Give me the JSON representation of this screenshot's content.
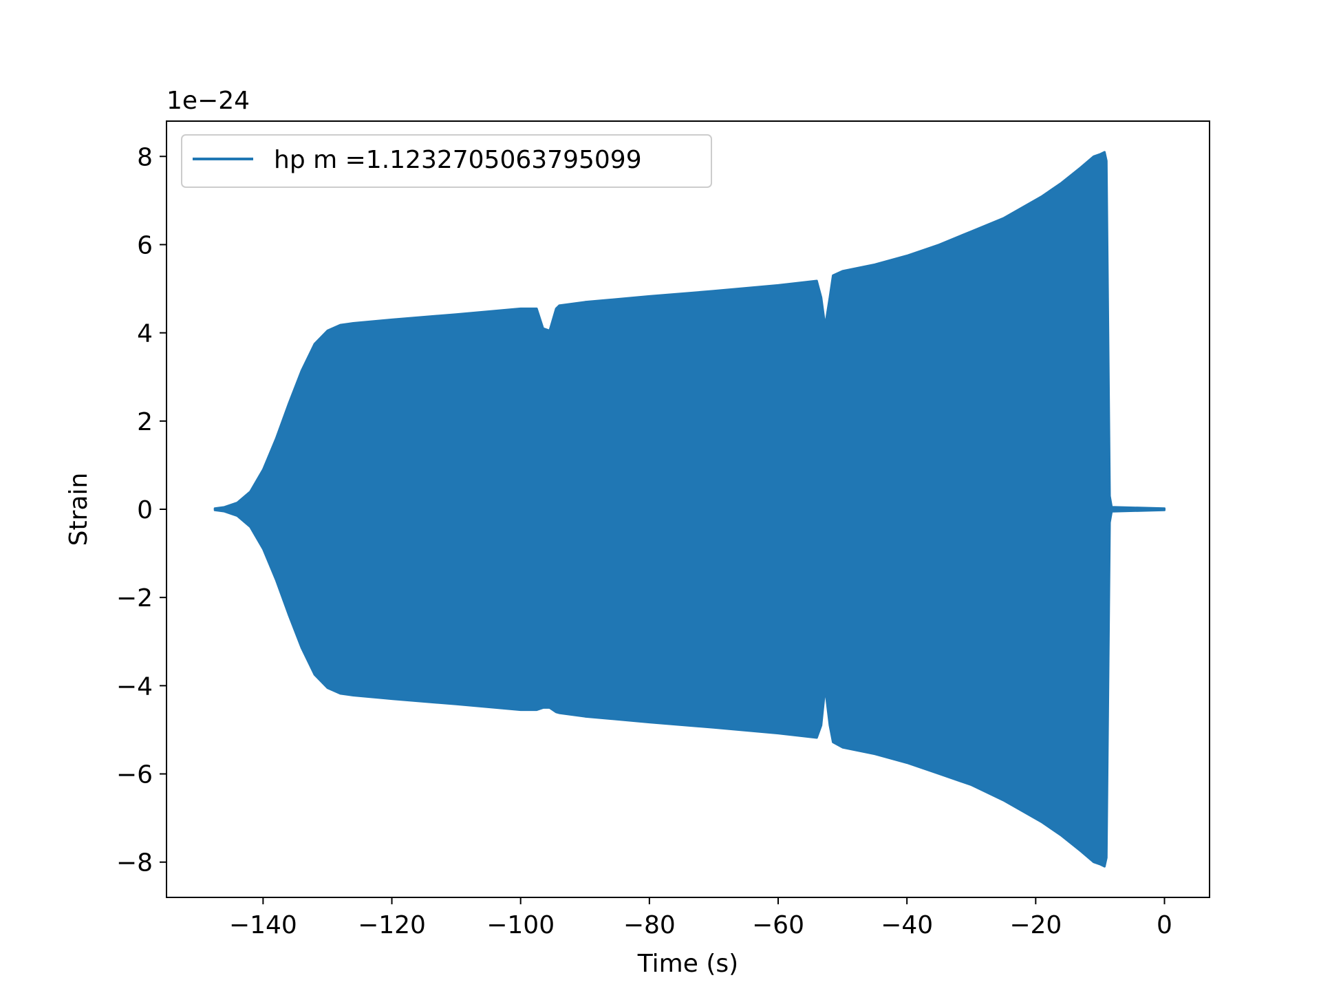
{
  "chart_data": {
    "type": "line",
    "title": "",
    "xlabel": "Time (s)",
    "ylabel": "Strain",
    "y_offset_text": "1e−24",
    "xlim": [
      -155,
      7
    ],
    "ylim": [
      -8.8,
      8.8
    ],
    "x_ticks": [
      -140,
      -120,
      -100,
      -80,
      -60,
      -40,
      -20,
      0
    ],
    "x_tick_labels": [
      "−140",
      "−120",
      "−100",
      "−80",
      "−60",
      "−40",
      "−20",
      "0"
    ],
    "y_ticks": [
      -8,
      -6,
      -4,
      -2,
      0,
      2,
      4,
      6,
      8
    ],
    "y_tick_labels": [
      "−8",
      "−6",
      "−4",
      "−2",
      "0",
      "2",
      "4",
      "6",
      "8"
    ],
    "grid": false,
    "legend_position": "top-left",
    "color": "#2077b4",
    "series": [
      {
        "name": "hp m =1.1232705063795099",
        "envelope": {
          "x": [
            -147.5,
            -146,
            -144,
            -142,
            -140,
            -138,
            -136,
            -134,
            -132,
            -130,
            -128,
            -126,
            -120,
            -110,
            -100,
            -97.5,
            -96.5,
            -95.5,
            -94.5,
            -94,
            -90,
            -80,
            -70,
            -60,
            -54,
            -53.3,
            -52.7,
            -52,
            -51.5,
            -50,
            -45,
            -40,
            -35,
            -30,
            -25,
            -22,
            -19,
            -16,
            -13,
            -11,
            -10,
            -9.3,
            -9,
            -8.8,
            -8.5,
            -8.2,
            0
          ],
          "upper": [
            0.02,
            0.05,
            0.15,
            0.4,
            0.9,
            1.6,
            2.4,
            3.15,
            3.75,
            4.05,
            4.18,
            4.22,
            4.3,
            4.42,
            4.55,
            4.55,
            4.1,
            4.05,
            4.55,
            4.62,
            4.7,
            4.83,
            4.95,
            5.08,
            5.18,
            4.8,
            4.15,
            4.8,
            5.3,
            5.4,
            5.55,
            5.75,
            6.0,
            6.3,
            6.6,
            6.85,
            7.1,
            7.4,
            7.75,
            8.0,
            8.05,
            8.1,
            7.9,
            5.0,
            0.3,
            0.05,
            0.02
          ],
          "lower": [
            -0.02,
            -0.05,
            -0.15,
            -0.4,
            -0.9,
            -1.6,
            -2.4,
            -3.15,
            -3.75,
            -4.05,
            -4.18,
            -4.22,
            -4.3,
            -4.42,
            -4.55,
            -4.55,
            -4.5,
            -4.5,
            -4.6,
            -4.62,
            -4.7,
            -4.83,
            -4.95,
            -5.08,
            -5.18,
            -4.9,
            -4.05,
            -4.9,
            -5.28,
            -5.4,
            -5.55,
            -5.75,
            -6.0,
            -6.25,
            -6.6,
            -6.85,
            -7.1,
            -7.4,
            -7.75,
            -8.0,
            -8.05,
            -8.1,
            -7.9,
            -5.0,
            -0.3,
            -0.05,
            -0.02
          ]
        }
      }
    ]
  }
}
